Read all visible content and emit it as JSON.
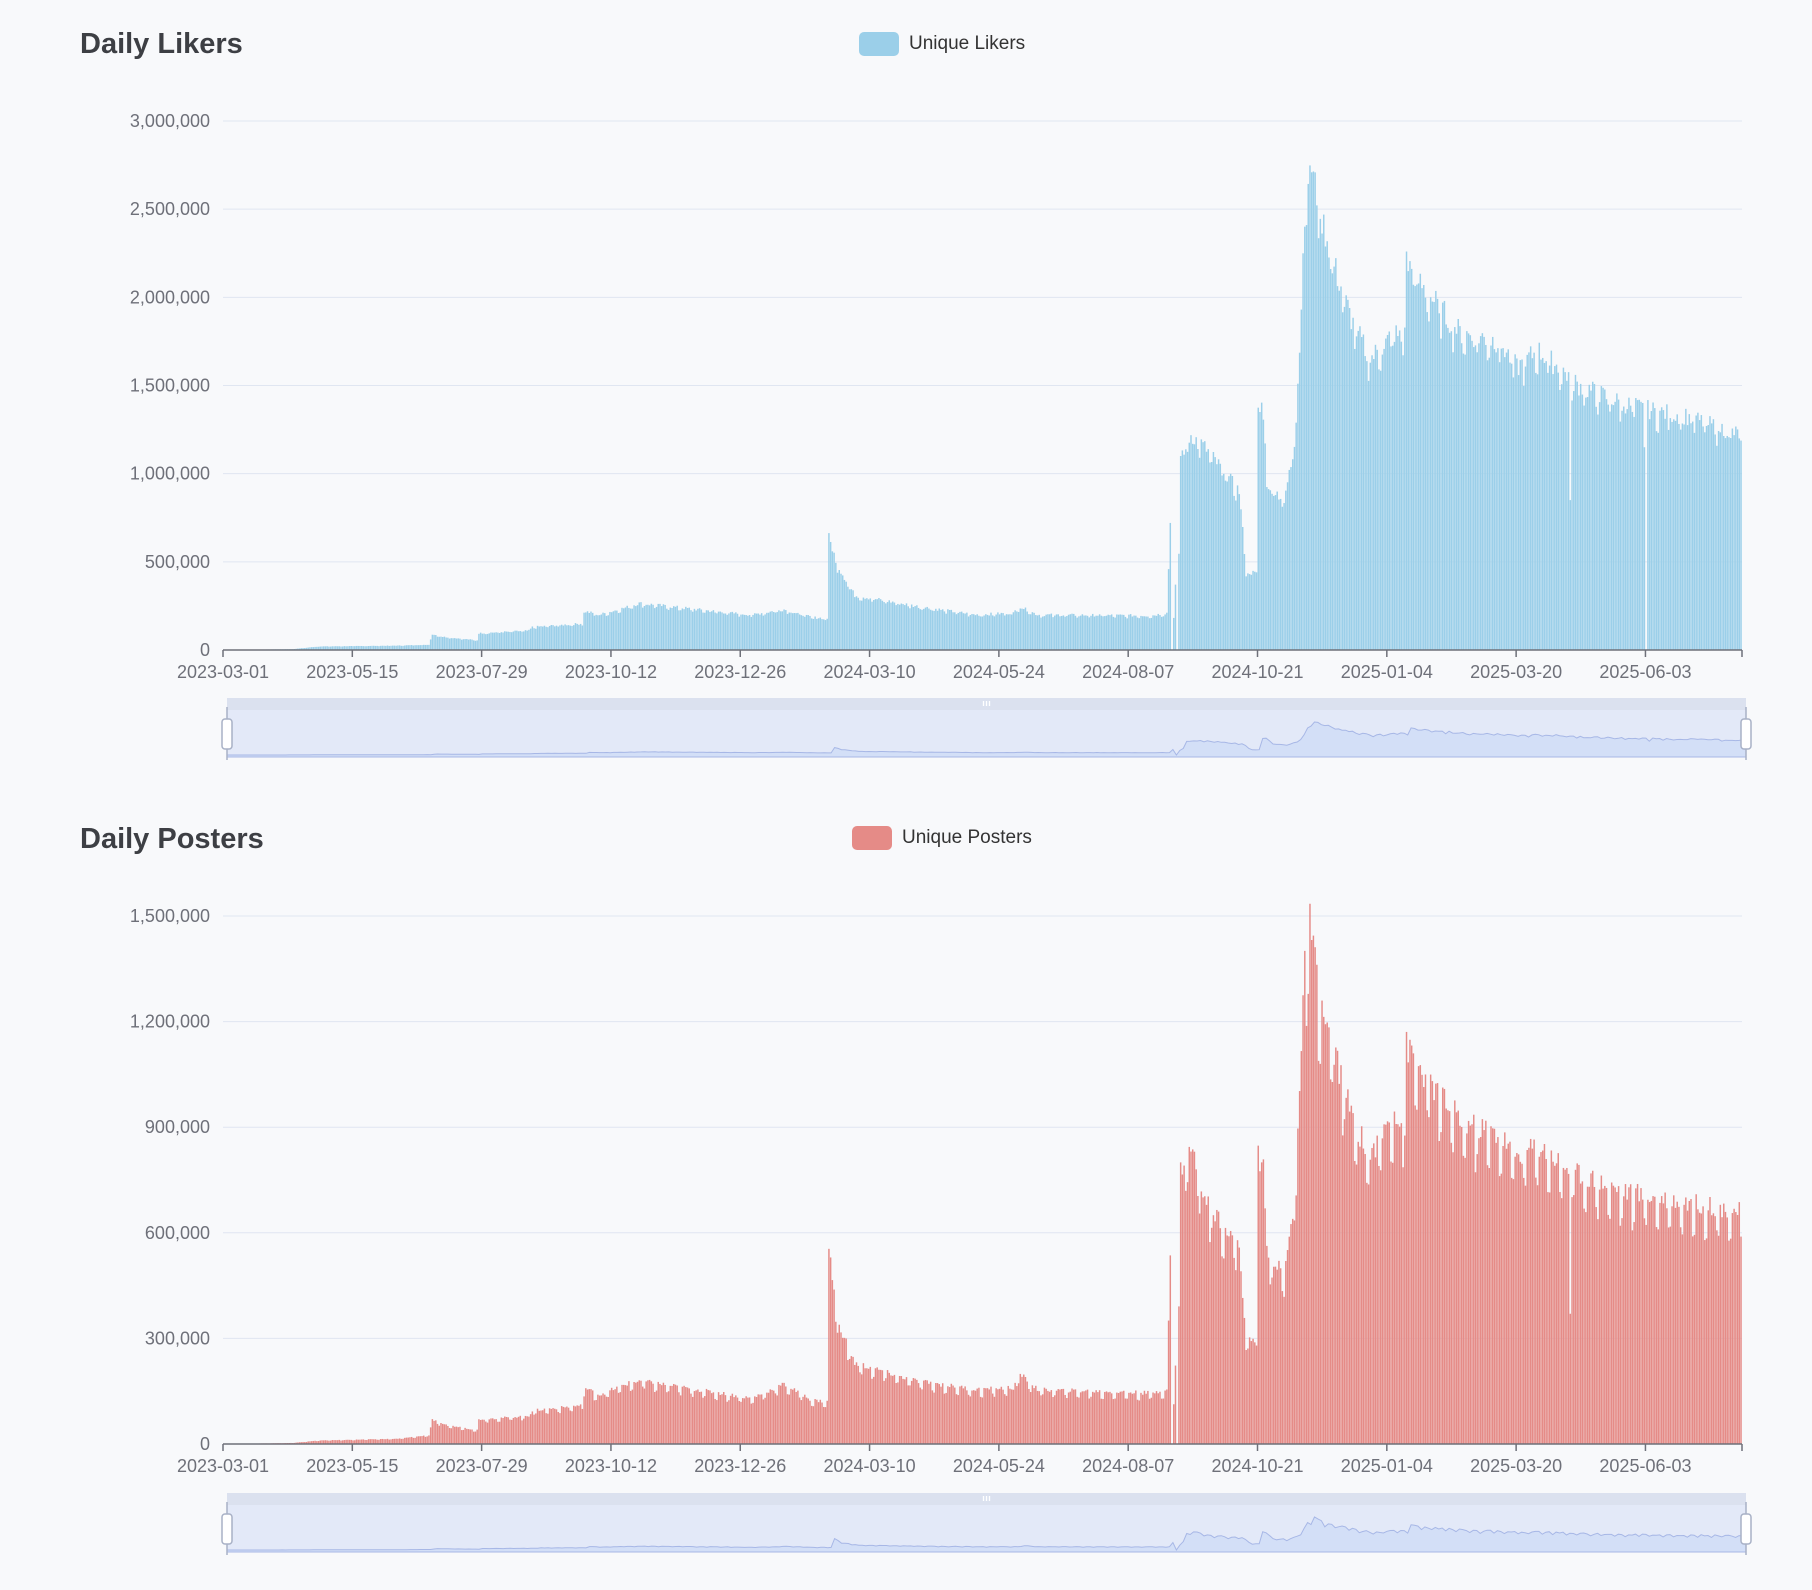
{
  "charts": [
    {
      "title": "Daily Likers",
      "legend": "Unique Likers",
      "color": "#9bcfe9",
      "border_color": "#8cc4e2",
      "zoom_line_color": "#a7b7e6",
      "zoom_fill_color": "#d3dff7"
    },
    {
      "title": "Daily Posters",
      "legend": "Unique Posters",
      "color": "#e58b87",
      "border_color": "#d97c78",
      "zoom_line_color": "#a7b7e6",
      "zoom_fill_color": "#d3dff7"
    }
  ],
  "chart_data": [
    {
      "type": "bar",
      "title": "Daily Likers",
      "legend": [
        "Unique Likers"
      ],
      "legend_position": "top-center",
      "xlabel": "",
      "ylabel": "",
      "x_start": "2023-03-01",
      "x_end": "2025-07-28",
      "x_tick_labels": [
        "2023-03-01",
        "2023-05-15",
        "2023-07-29",
        "2023-10-12",
        "2023-12-26",
        "2024-03-10",
        "2024-05-24",
        "2024-08-07",
        "2024-10-21",
        "2025-01-04",
        "2025-03-20",
        "2025-06-03"
      ],
      "y_tick_labels": [
        "0",
        "500,000",
        "1,000,000",
        "1,500,000",
        "2,000,000",
        "2,500,000",
        "3,000,000"
      ],
      "ylim": [
        0,
        3000000
      ],
      "grid": true,
      "data_zoom": {
        "start_percent": 0,
        "end_percent": 100
      },
      "series": [
        {
          "name": "Unique Likers",
          "anchors": [
            [
              "2023-03-01",
              0
            ],
            [
              "2023-04-10",
              5000
            ],
            [
              "2023-04-25",
              20000
            ],
            [
              "2023-06-10",
              25000
            ],
            [
              "2023-06-28",
              30000
            ],
            [
              "2023-06-30",
              90000
            ],
            [
              "2023-07-06",
              75000
            ],
            [
              "2023-07-26",
              55000
            ],
            [
              "2023-07-27",
              95000
            ],
            [
              "2023-08-25",
              110000
            ],
            [
              "2023-08-27",
              130000
            ],
            [
              "2023-09-25",
              150000
            ],
            [
              "2023-09-26",
              220000
            ],
            [
              "2023-10-05",
              200000
            ],
            [
              "2023-10-20",
              240000
            ],
            [
              "2023-10-28",
              265000
            ],
            [
              "2023-12-20",
              210000
            ],
            [
              "2024-01-01",
              200000
            ],
            [
              "2024-01-20",
              230000
            ],
            [
              "2024-02-05",
              185000
            ],
            [
              "2024-02-14",
              180000
            ],
            [
              "2024-02-15",
              640000
            ],
            [
              "2024-02-20",
              480000
            ],
            [
              "2024-03-01",
              310000
            ],
            [
              "2024-04-05",
              250000
            ],
            [
              "2024-05-10",
              200000
            ],
            [
              "2024-06-01",
              210000
            ],
            [
              "2024-06-05",
              245000
            ],
            [
              "2024-06-15",
              200000
            ],
            [
              "2024-08-20",
              195000
            ],
            [
              "2024-08-29",
              210000
            ],
            [
              "2024-08-31",
              720000
            ],
            [
              "2024-09-01",
              0
            ],
            [
              "2024-09-03",
              380000
            ],
            [
              "2024-09-04",
              0
            ],
            [
              "2024-09-06",
              1100000
            ],
            [
              "2024-09-12",
              1220000
            ],
            [
              "2024-09-20",
              1150000
            ],
            [
              "2024-10-10",
              900000
            ],
            [
              "2024-10-14",
              450000
            ],
            [
              "2024-10-20",
              430000
            ],
            [
              "2024-10-21",
              1450000
            ],
            [
              "2024-10-24",
              1350000
            ],
            [
              "2024-10-26",
              950000
            ],
            [
              "2024-11-05",
              850000
            ],
            [
              "2024-11-10",
              1100000
            ],
            [
              "2024-11-14",
              1700000
            ],
            [
              "2024-11-17",
              2500000
            ],
            [
              "2024-11-20",
              2780000
            ],
            [
              "2024-11-26",
              2480000
            ],
            [
              "2024-12-05",
              2150000
            ],
            [
              "2024-12-15",
              1850000
            ],
            [
              "2024-12-25",
              1650000
            ],
            [
              "2025-01-08",
              1800000
            ],
            [
              "2025-01-13",
              1750000
            ],
            [
              "2025-01-15",
              2200000
            ],
            [
              "2025-01-25",
              2050000
            ],
            [
              "2025-02-15",
              1800000
            ],
            [
              "2025-03-10",
              1750000
            ],
            [
              "2025-03-20",
              1600000
            ],
            [
              "2025-04-01",
              1700000
            ],
            [
              "2025-04-20",
              1550000
            ],
            [
              "2025-04-25",
              1500000
            ],
            [
              "2025-05-20",
              1400000
            ],
            [
              "2025-06-10",
              1350000
            ],
            [
              "2025-06-25",
              1330000
            ],
            [
              "2025-07-28",
              1220000
            ]
          ],
          "dips": [
            [
              "2025-04-20",
              850000
            ],
            [
              "2025-06-02",
              1150000
            ],
            [
              "2025-06-03",
              0
            ]
          ]
        }
      ]
    },
    {
      "type": "bar",
      "title": "Daily Posters",
      "legend": [
        "Unique Posters"
      ],
      "legend_position": "top-center",
      "xlabel": "",
      "ylabel": "",
      "x_start": "2023-03-01",
      "x_end": "2025-07-28",
      "x_tick_labels": [
        "2023-03-01",
        "2023-05-15",
        "2023-07-29",
        "2023-10-12",
        "2023-12-26",
        "2024-03-10",
        "2024-05-24",
        "2024-08-07",
        "2024-10-21",
        "2025-01-04",
        "2025-03-20",
        "2025-06-03"
      ],
      "y_tick_labels": [
        "0",
        "300,000",
        "600,000",
        "900,000",
        "1,200,000",
        "1,500,000"
      ],
      "ylim": [
        0,
        1500000
      ],
      "grid": true,
      "data_zoom": {
        "start_percent": 0,
        "end_percent": 100
      },
      "series": [
        {
          "name": "Unique Posters",
          "anchors": [
            [
              "2023-03-01",
              0
            ],
            [
              "2023-04-10",
              3000
            ],
            [
              "2023-04-25",
              10000
            ],
            [
              "2023-06-10",
              15000
            ],
            [
              "2023-06-28",
              25000
            ],
            [
              "2023-06-30",
              70000
            ],
            [
              "2023-07-06",
              55000
            ],
            [
              "2023-07-26",
              40000
            ],
            [
              "2023-07-27",
              70000
            ],
            [
              "2023-08-25",
              80000
            ],
            [
              "2023-08-27",
              95000
            ],
            [
              "2023-09-25",
              110000
            ],
            [
              "2023-09-26",
              160000
            ],
            [
              "2023-10-05",
              140000
            ],
            [
              "2023-10-20",
              170000
            ],
            [
              "2023-10-28",
              180000
            ],
            [
              "2023-12-20",
              140000
            ],
            [
              "2024-01-01",
              130000
            ],
            [
              "2024-01-20",
              170000
            ],
            [
              "2024-02-05",
              125000
            ],
            [
              "2024-02-14",
              120000
            ],
            [
              "2024-02-15",
              560000
            ],
            [
              "2024-02-20",
              350000
            ],
            [
              "2024-03-01",
              230000
            ],
            [
              "2024-04-05",
              180000
            ],
            [
              "2024-05-10",
              155000
            ],
            [
              "2024-06-01",
              160000
            ],
            [
              "2024-06-05",
              200000
            ],
            [
              "2024-06-15",
              155000
            ],
            [
              "2024-08-20",
              145000
            ],
            [
              "2024-08-29",
              155000
            ],
            [
              "2024-08-31",
              530000
            ],
            [
              "2024-09-01",
              0
            ],
            [
              "2024-09-03",
              250000
            ],
            [
              "2024-09-04",
              0
            ],
            [
              "2024-09-06",
              780000
            ],
            [
              "2024-09-12",
              850000
            ],
            [
              "2024-09-20",
              700000
            ],
            [
              "2024-10-10",
              560000
            ],
            [
              "2024-10-14",
              300000
            ],
            [
              "2024-10-20",
              290000
            ],
            [
              "2024-10-21",
              930000
            ],
            [
              "2024-10-24",
              780000
            ],
            [
              "2024-10-26",
              550000
            ],
            [
              "2024-11-05",
              480000
            ],
            [
              "2024-11-10",
              650000
            ],
            [
              "2024-11-14",
              1000000
            ],
            [
              "2024-11-17",
              1350000
            ],
            [
              "2024-11-20",
              1480000
            ],
            [
              "2024-11-26",
              1250000
            ],
            [
              "2024-12-05",
              1100000
            ],
            [
              "2024-12-15",
              920000
            ],
            [
              "2024-12-25",
              820000
            ],
            [
              "2025-01-08",
              950000
            ],
            [
              "2025-01-13",
              900000
            ],
            [
              "2025-01-15",
              1130000
            ],
            [
              "2025-01-25",
              1050000
            ],
            [
              "2025-02-15",
              920000
            ],
            [
              "2025-03-10",
              880000
            ],
            [
              "2025-03-20",
              820000
            ],
            [
              "2025-04-01",
              850000
            ],
            [
              "2025-04-20",
              780000
            ],
            [
              "2025-05-20",
              720000
            ],
            [
              "2025-06-10",
              700000
            ],
            [
              "2025-06-25",
              690000
            ],
            [
              "2025-07-28",
              660000
            ]
          ],
          "dips": [
            [
              "2025-04-20",
              370000
            ]
          ]
        }
      ]
    }
  ]
}
